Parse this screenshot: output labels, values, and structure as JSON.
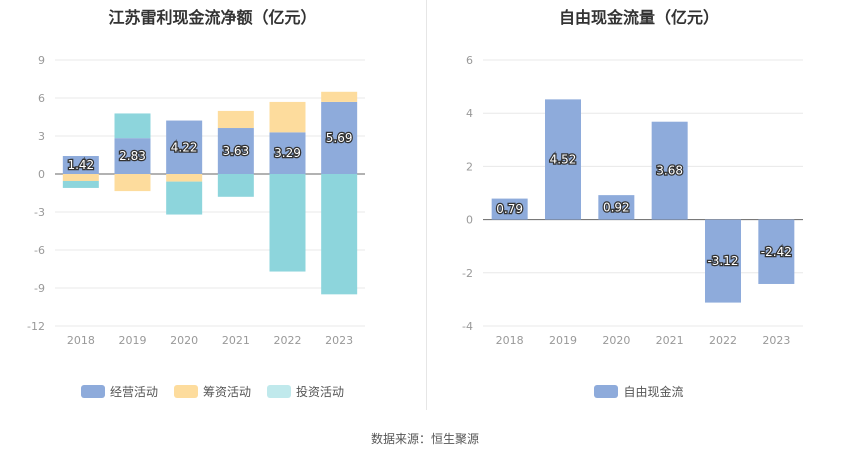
{
  "source_text": "数据来源：恒生聚源",
  "chart_data": [
    {
      "type": "bar",
      "stacked": true,
      "title": "江苏雷利现金流净额（亿元）",
      "categories": [
        "2018",
        "2019",
        "2020",
        "2021",
        "2022",
        "2023"
      ],
      "series": [
        {
          "name": "经营活动",
          "color": "#8eabdb",
          "values": [
            1.42,
            2.83,
            4.22,
            3.63,
            3.29,
            5.69
          ],
          "show_labels": true
        },
        {
          "name": "筹资活动",
          "color": "#fddc9d",
          "values": [
            -0.55,
            -1.35,
            -0.6,
            1.35,
            2.4,
            0.8
          ],
          "show_labels": false
        },
        {
          "name": "投资活动",
          "color": "#8dd5dc",
          "values": [
            -0.55,
            1.95,
            -2.6,
            -1.8,
            -7.7,
            -9.5
          ],
          "show_labels": false
        }
      ],
      "legend_colors": [
        "#8eabdb",
        "#fddc9d",
        "#c0e9ec"
      ],
      "yticks": [
        9,
        6,
        3,
        0,
        -3,
        -6,
        -9,
        -12
      ],
      "ylim": [
        -12,
        9
      ],
      "legend_position": "bottom"
    },
    {
      "type": "bar",
      "title": "自由现金流量（亿元）",
      "categories": [
        "2018",
        "2019",
        "2020",
        "2021",
        "2022",
        "2023"
      ],
      "series": [
        {
          "name": "自由现金流",
          "color": "#8eabdb",
          "values": [
            0.79,
            4.52,
            0.92,
            3.68,
            -3.12,
            -2.42
          ],
          "show_labels": true
        }
      ],
      "yticks": [
        6,
        4,
        2,
        0,
        -2,
        -4
      ],
      "ylim": [
        -4,
        6
      ],
      "legend_position": "bottom"
    }
  ]
}
